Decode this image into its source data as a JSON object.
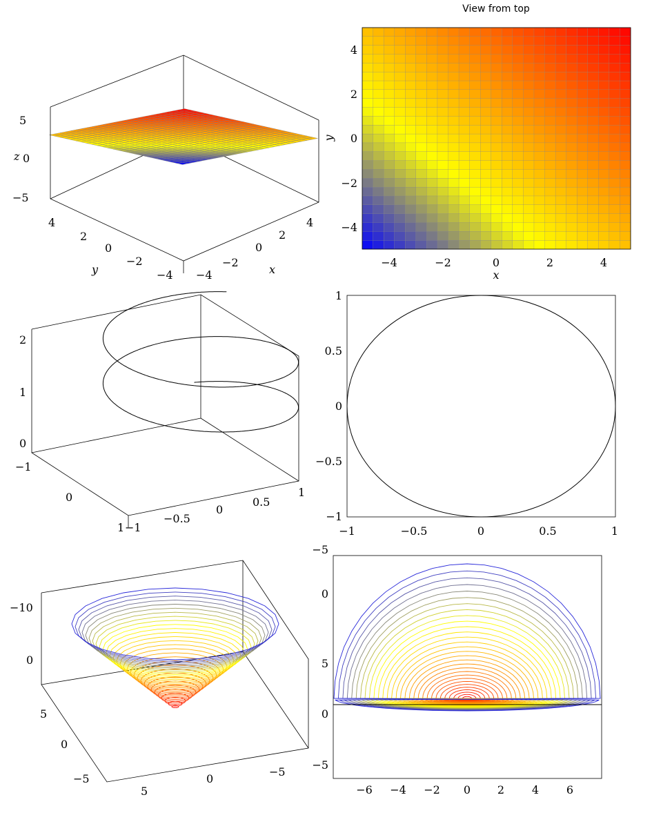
{
  "chart_data": [
    {
      "type": "surface3d",
      "function": "z = x + y",
      "x_range": [
        -5,
        5
      ],
      "y_range": [
        -5,
        5
      ],
      "samples": 25,
      "colormap": [
        "#0000ff",
        "#ffff00",
        "#ff8000",
        "#ff0000"
      ],
      "xlabel": "x",
      "ylabel": "y",
      "zlabel": "z",
      "x_ticks": [
        "−4",
        "−2",
        "0",
        "2",
        "4"
      ],
      "y_ticks": [
        "4",
        "2",
        "0",
        "−2",
        "−4"
      ],
      "z_ticks": [
        "5",
        "0",
        "−5"
      ]
    },
    {
      "type": "heatmap",
      "title": "View from top",
      "function": "z = x + y",
      "x_range": [
        -5,
        5
      ],
      "y_range": [
        -5,
        5
      ],
      "samples": 25,
      "xlabel": "x",
      "ylabel": "y",
      "x_ticks": [
        "−4",
        "−2",
        "0",
        "2",
        "4"
      ],
      "y_ticks": [
        "4",
        "2",
        "0",
        "−2",
        "−4"
      ]
    },
    {
      "type": "line3d",
      "curve": "helix (cos t, sin t, t/(2π))",
      "t_range": [
        0,
        12.9
      ],
      "x_ticks": [
        "−1",
        "−0.5",
        "0",
        "0.5",
        "1"
      ],
      "y_ticks": [
        "−1",
        "0",
        "1"
      ],
      "z_ticks": [
        "2",
        "1",
        "0"
      ]
    },
    {
      "type": "line",
      "curve": "circle (cos t, sin t)",
      "xlim": [
        -1,
        1
      ],
      "ylim": [
        -1,
        1
      ],
      "x_ticks": [
        "−1",
        "−0.5",
        "0",
        "0.5",
        "1"
      ],
      "y_ticks": [
        "1",
        "0.5",
        "0",
        "−0.5",
        "−1"
      ]
    },
    {
      "type": "contour3d",
      "function": "cone z = −r",
      "r_max": 8,
      "levels": 30,
      "x_ticks": [
        "5",
        "0",
        "−5"
      ],
      "y_ticks": [
        "5",
        "0",
        "−5"
      ],
      "z_ticks": [
        "−10",
        "0"
      ]
    },
    {
      "type": "contour",
      "function": "cone contours, projected",
      "levels": 30,
      "x_ticks": [
        "−6",
        "−4",
        "−2",
        "0",
        "2",
        "4",
        "6"
      ],
      "y_ticks_top": [
        "−5",
        "0",
        "5"
      ],
      "y_ticks_bottom": [
        "0",
        "5",
        "−5"
      ]
    }
  ]
}
